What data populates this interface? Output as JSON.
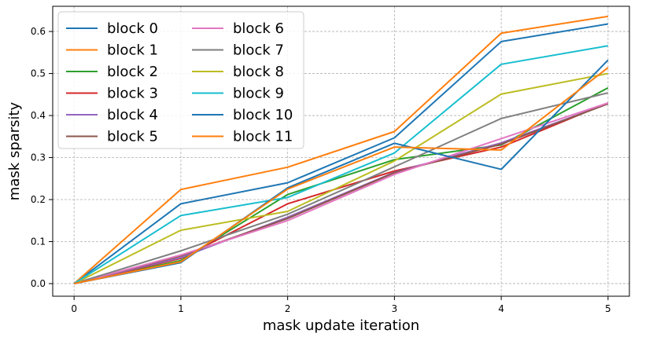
{
  "chart_data": {
    "type": "line",
    "xlabel": "mask update iteration",
    "ylabel": "mask sparsity",
    "x": [
      0,
      1,
      2,
      3,
      4,
      5
    ],
    "xlim": [
      -0.2,
      5.2
    ],
    "ylim": [
      -0.03,
      0.66
    ],
    "xticks": [
      "0",
      "1",
      "2",
      "3",
      "4",
      "5"
    ],
    "yticks": [
      "0.0",
      "0.1",
      "0.2",
      "0.3",
      "0.4",
      "0.5",
      "0.6"
    ],
    "grid": true,
    "legend_position": "top-left",
    "legend_columns": 2,
    "series": [
      {
        "name": "block 0",
        "color": "#1f77b4",
        "values": [
          0.0,
          0.19,
          0.24,
          0.347,
          0.576,
          0.618
        ]
      },
      {
        "name": "block 1",
        "color": "#ff7f0e",
        "values": [
          0.0,
          0.224,
          0.277,
          0.362,
          0.596,
          0.636
        ]
      },
      {
        "name": "block 2",
        "color": "#2ca02c",
        "values": [
          0.0,
          0.055,
          0.212,
          0.295,
          0.33,
          0.466
        ]
      },
      {
        "name": "block 3",
        "color": "#d62728",
        "values": [
          0.0,
          0.06,
          0.19,
          0.268,
          0.325,
          0.43
        ]
      },
      {
        "name": "block 4",
        "color": "#9467bd",
        "values": [
          0.0,
          0.062,
          0.158,
          0.265,
          0.335,
          0.428
        ]
      },
      {
        "name": "block 5",
        "color": "#8c564b",
        "values": [
          0.0,
          0.066,
          0.155,
          0.264,
          0.332,
          0.428
        ]
      },
      {
        "name": "block 6",
        "color": "#e377c2",
        "values": [
          0.0,
          0.068,
          0.15,
          0.26,
          0.345,
          0.43
        ]
      },
      {
        "name": "block 7",
        "color": "#7f7f7f",
        "values": [
          0.0,
          0.078,
          0.165,
          0.278,
          0.393,
          0.454
        ]
      },
      {
        "name": "block 8",
        "color": "#bcbd22",
        "values": [
          0.0,
          0.127,
          0.172,
          0.292,
          0.451,
          0.5
        ]
      },
      {
        "name": "block 9",
        "color": "#17becf",
        "values": [
          0.0,
          0.162,
          0.205,
          0.311,
          0.522,
          0.566
        ]
      },
      {
        "name": "block 10",
        "color": "#1f77b4",
        "values": [
          0.0,
          0.05,
          0.228,
          0.334,
          0.272,
          0.532
        ]
      },
      {
        "name": "block 11",
        "color": "#ff7f0e",
        "values": [
          0.0,
          0.052,
          0.225,
          0.325,
          0.318,
          0.514
        ]
      }
    ]
  }
}
